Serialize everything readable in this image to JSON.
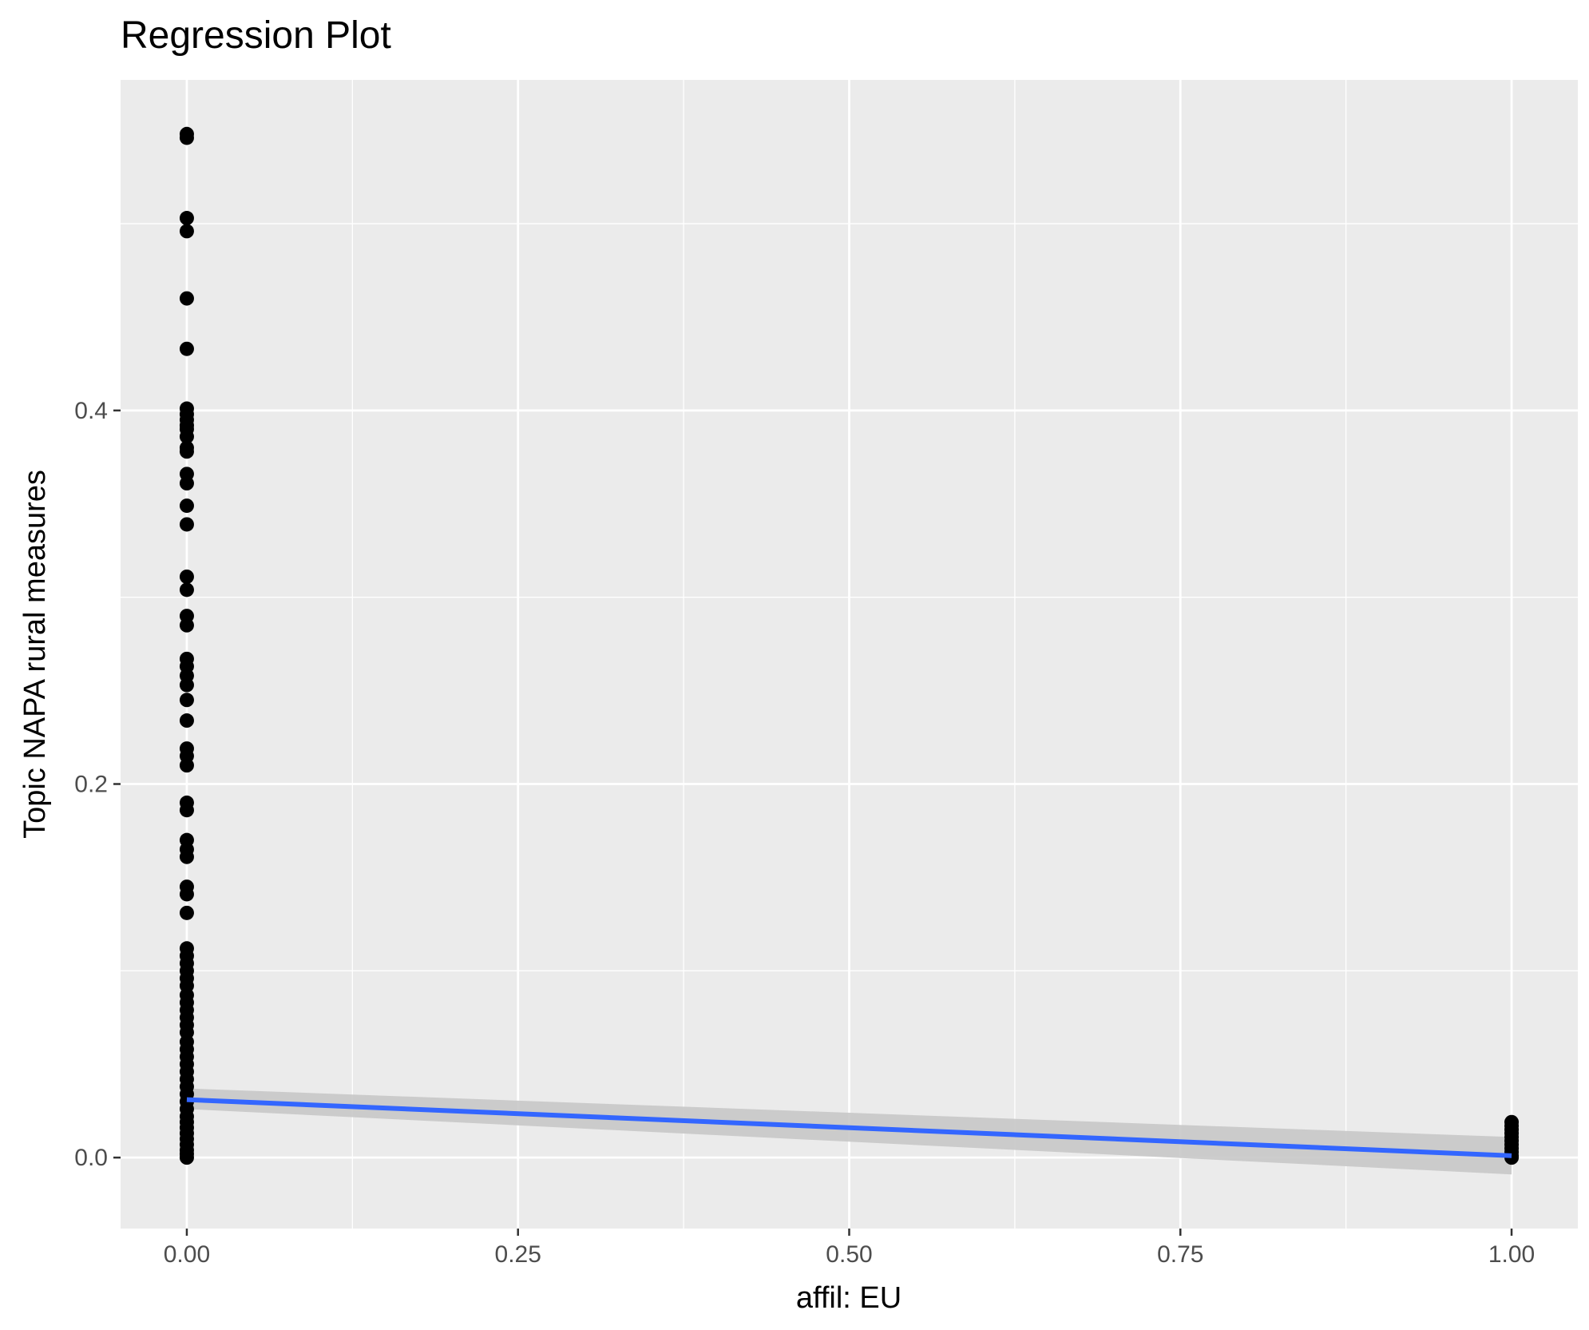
{
  "chart_data": {
    "type": "scatter",
    "title": "Regression Plot",
    "xlabel": "affil: EU",
    "ylabel": "Topic NAPA rural measures",
    "xlim": [
      -0.05,
      1.05
    ],
    "ylim": [
      -0.038,
      0.577
    ],
    "x_ticks": [
      {
        "value": 0.0,
        "label": "0.00"
      },
      {
        "value": 0.25,
        "label": "0.25"
      },
      {
        "value": 0.5,
        "label": "0.50"
      },
      {
        "value": 0.75,
        "label": "0.75"
      },
      {
        "value": 1.0,
        "label": "1.00"
      }
    ],
    "y_ticks": [
      {
        "value": 0.0,
        "label": "0.0"
      },
      {
        "value": 0.2,
        "label": "0.2"
      },
      {
        "value": 0.4,
        "label": "0.4"
      }
    ],
    "grid": true,
    "legend": "none",
    "colors": {
      "panel_background": "#ebebeb",
      "grid": "#ffffff",
      "points": "#000000",
      "regression_line": "#3366ff",
      "confidence_band": "#c8c8c8"
    },
    "points": [
      {
        "x": 0,
        "y": 0.548
      },
      {
        "x": 0,
        "y": 0.546
      },
      {
        "x": 0,
        "y": 0.503
      },
      {
        "x": 0,
        "y": 0.496
      },
      {
        "x": 0,
        "y": 0.46
      },
      {
        "x": 0,
        "y": 0.433
      },
      {
        "x": 0,
        "y": 0.401
      },
      {
        "x": 0,
        "y": 0.398
      },
      {
        "x": 0,
        "y": 0.395
      },
      {
        "x": 0,
        "y": 0.392
      },
      {
        "x": 0,
        "y": 0.39
      },
      {
        "x": 0,
        "y": 0.386
      },
      {
        "x": 0,
        "y": 0.38
      },
      {
        "x": 0,
        "y": 0.378
      },
      {
        "x": 0,
        "y": 0.366
      },
      {
        "x": 0,
        "y": 0.361
      },
      {
        "x": 0,
        "y": 0.349
      },
      {
        "x": 0,
        "y": 0.339
      },
      {
        "x": 0,
        "y": 0.311
      },
      {
        "x": 0,
        "y": 0.304
      },
      {
        "x": 0,
        "y": 0.29
      },
      {
        "x": 0,
        "y": 0.285
      },
      {
        "x": 0,
        "y": 0.267
      },
      {
        "x": 0,
        "y": 0.263
      },
      {
        "x": 0,
        "y": 0.258
      },
      {
        "x": 0,
        "y": 0.253
      },
      {
        "x": 0,
        "y": 0.245
      },
      {
        "x": 0,
        "y": 0.234
      },
      {
        "x": 0,
        "y": 0.219
      },
      {
        "x": 0,
        "y": 0.215
      },
      {
        "x": 0,
        "y": 0.21
      },
      {
        "x": 0,
        "y": 0.19
      },
      {
        "x": 0,
        "y": 0.186
      },
      {
        "x": 0,
        "y": 0.17
      },
      {
        "x": 0,
        "y": 0.165
      },
      {
        "x": 0,
        "y": 0.161
      },
      {
        "x": 0,
        "y": 0.145
      },
      {
        "x": 0,
        "y": 0.141
      },
      {
        "x": 0,
        "y": 0.131
      },
      {
        "x": 0,
        "y": 0.112
      },
      {
        "x": 0,
        "y": 0.108
      },
      {
        "x": 0,
        "y": 0.104
      },
      {
        "x": 0,
        "y": 0.1
      },
      {
        "x": 0,
        "y": 0.096
      },
      {
        "x": 0,
        "y": 0.092
      },
      {
        "x": 0,
        "y": 0.087
      },
      {
        "x": 0,
        "y": 0.083
      },
      {
        "x": 0,
        "y": 0.079
      },
      {
        "x": 0,
        "y": 0.075
      },
      {
        "x": 0,
        "y": 0.071
      },
      {
        "x": 0,
        "y": 0.067
      },
      {
        "x": 0,
        "y": 0.062
      },
      {
        "x": 0,
        "y": 0.058
      },
      {
        "x": 0,
        "y": 0.054
      },
      {
        "x": 0,
        "y": 0.05
      },
      {
        "x": 0,
        "y": 0.046
      },
      {
        "x": 0,
        "y": 0.042
      },
      {
        "x": 0,
        "y": 0.038
      },
      {
        "x": 0,
        "y": 0.034
      },
      {
        "x": 0,
        "y": 0.03
      },
      {
        "x": 0,
        "y": 0.026
      },
      {
        "x": 0,
        "y": 0.022
      },
      {
        "x": 0,
        "y": 0.019
      },
      {
        "x": 0,
        "y": 0.016
      },
      {
        "x": 0,
        "y": 0.013
      },
      {
        "x": 0,
        "y": 0.01
      },
      {
        "x": 0,
        "y": 0.007
      },
      {
        "x": 0,
        "y": 0.004
      },
      {
        "x": 0,
        "y": 0.002
      },
      {
        "x": 0,
        "y": 0.0
      },
      {
        "x": 1,
        "y": 0.019
      },
      {
        "x": 1,
        "y": 0.017
      },
      {
        "x": 1,
        "y": 0.015
      },
      {
        "x": 1,
        "y": 0.013
      },
      {
        "x": 1,
        "y": 0.011
      },
      {
        "x": 1,
        "y": 0.009
      },
      {
        "x": 1,
        "y": 0.007
      },
      {
        "x": 1,
        "y": 0.005
      },
      {
        "x": 1,
        "y": 0.003
      },
      {
        "x": 1,
        "y": 0.001
      },
      {
        "x": 1,
        "y": 0.0
      }
    ],
    "regression": {
      "x": [
        0,
        1
      ],
      "y": [
        0.031,
        0.001
      ],
      "ci_lower": [
        0.026,
        -0.009
      ],
      "ci_upper": [
        0.037,
        0.011
      ]
    }
  }
}
